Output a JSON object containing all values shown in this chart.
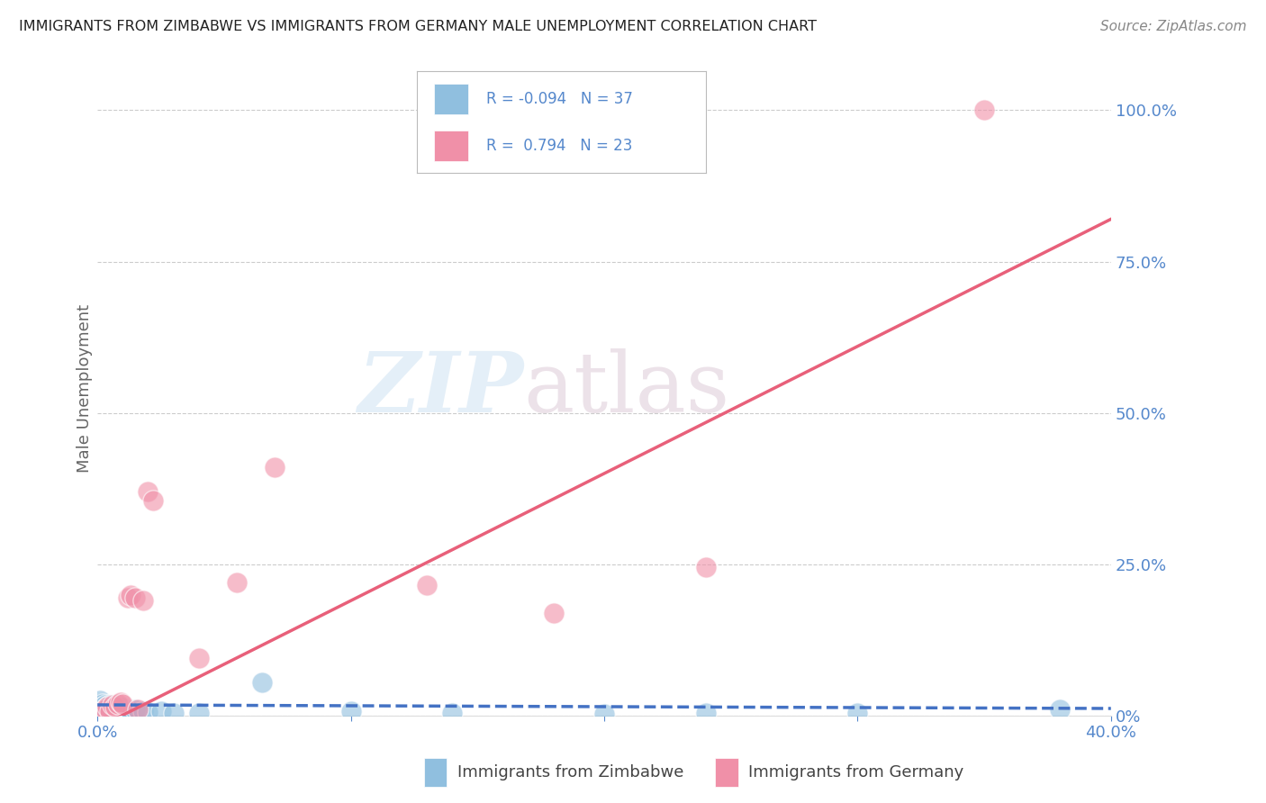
{
  "title": "IMMIGRANTS FROM ZIMBABWE VS IMMIGRANTS FROM GERMANY MALE UNEMPLOYMENT CORRELATION CHART",
  "source": "Source: ZipAtlas.com",
  "ylabel_left": "Male Unemployment",
  "zimbabwe_color": "#90bfdf",
  "germany_color": "#f090a8",
  "zimbabwe_R": -0.094,
  "zimbabwe_N": 37,
  "germany_R": 0.794,
  "germany_N": 23,
  "xmin": 0.0,
  "xmax": 0.4,
  "ymin": 0.0,
  "ymax": 1.08,
  "zimbabwe_scatter": [
    [
      0.001,
      0.02
    ],
    [
      0.001,
      0.015
    ],
    [
      0.001,
      0.025
    ],
    [
      0.002,
      0.02
    ],
    [
      0.002,
      0.015
    ],
    [
      0.002,
      0.01
    ],
    [
      0.003,
      0.018
    ],
    [
      0.003,
      0.012
    ],
    [
      0.003,
      0.008
    ],
    [
      0.004,
      0.015
    ],
    [
      0.004,
      0.01
    ],
    [
      0.005,
      0.018
    ],
    [
      0.005,
      0.012
    ],
    [
      0.006,
      0.015
    ],
    [
      0.006,
      0.01
    ],
    [
      0.007,
      0.013
    ],
    [
      0.007,
      0.008
    ],
    [
      0.008,
      0.015
    ],
    [
      0.008,
      0.006
    ],
    [
      0.009,
      0.01
    ],
    [
      0.01,
      0.013
    ],
    [
      0.011,
      0.008
    ],
    [
      0.012,
      0.005
    ],
    [
      0.013,
      0.007
    ],
    [
      0.015,
      0.01
    ],
    [
      0.018,
      0.008
    ],
    [
      0.02,
      0.006
    ],
    [
      0.025,
      0.008
    ],
    [
      0.03,
      0.005
    ],
    [
      0.04,
      0.004
    ],
    [
      0.065,
      0.055
    ],
    [
      0.1,
      0.008
    ],
    [
      0.14,
      0.005
    ],
    [
      0.2,
      0.003
    ],
    [
      0.24,
      0.005
    ],
    [
      0.3,
      0.004
    ],
    [
      0.38,
      0.01
    ]
  ],
  "germany_scatter": [
    [
      0.002,
      0.005
    ],
    [
      0.003,
      0.01
    ],
    [
      0.004,
      0.015
    ],
    [
      0.005,
      0.008
    ],
    [
      0.006,
      0.018
    ],
    [
      0.007,
      0.015
    ],
    [
      0.008,
      0.02
    ],
    [
      0.009,
      0.022
    ],
    [
      0.01,
      0.02
    ],
    [
      0.012,
      0.195
    ],
    [
      0.013,
      0.2
    ],
    [
      0.015,
      0.195
    ],
    [
      0.016,
      0.01
    ],
    [
      0.018,
      0.19
    ],
    [
      0.02,
      0.37
    ],
    [
      0.022,
      0.355
    ],
    [
      0.04,
      0.095
    ],
    [
      0.055,
      0.22
    ],
    [
      0.07,
      0.41
    ],
    [
      0.13,
      0.215
    ],
    [
      0.18,
      0.17
    ],
    [
      0.24,
      0.245
    ],
    [
      0.35,
      1.0
    ]
  ],
  "zimbabwe_line_color": "#4472c4",
  "germany_line_color": "#e8607a",
  "zim_line_x": [
    0.0,
    0.4
  ],
  "zim_line_y": [
    0.018,
    0.012
  ],
  "ger_line_x": [
    0.0,
    0.4
  ],
  "ger_line_y": [
    -0.02,
    0.82
  ],
  "legend_box_color": "#cccccc",
  "legend_zim_text": "R = -0.094   N = 37",
  "legend_ger_text": "R =  0.794   N = 23",
  "legend_text_color": "#5588cc",
  "bottom_legend_zim": "Immigrants from Zimbabwe",
  "bottom_legend_ger": "Immigrants from Germany",
  "bottom_legend_color": "#444444",
  "title_color": "#222222",
  "source_color": "#888888",
  "ylabel_color": "#666666",
  "tick_color": "#5588cc",
  "grid_color": "#cccccc",
  "y_ticks": [
    0.0,
    0.25,
    0.5,
    0.75,
    1.0
  ],
  "y_tick_labels": [
    "0%",
    "25.0%",
    "50.0%",
    "75.0%",
    "100.0%"
  ],
  "x_ticks": [
    0.0,
    0.1,
    0.2,
    0.3,
    0.4
  ],
  "x_tick_labels": [
    "0.0%",
    "",
    "",
    "",
    "40.0%"
  ]
}
